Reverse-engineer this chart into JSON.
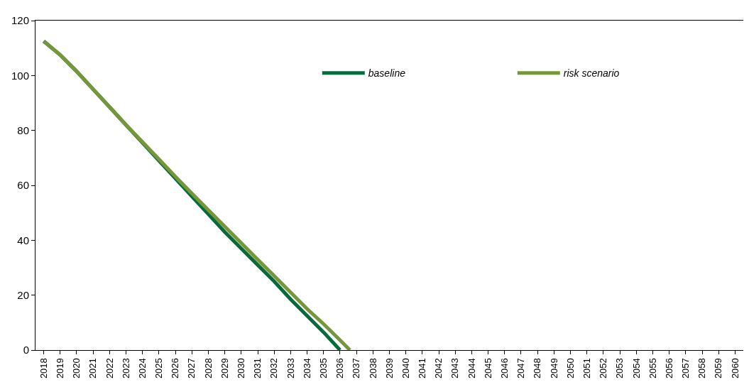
{
  "chart_data": {
    "type": "line",
    "xlim": [
      2017.5,
      2060.5
    ],
    "xticks": [
      2018,
      2019,
      2020,
      2021,
      2022,
      2023,
      2024,
      2025,
      2026,
      2027,
      2028,
      2029,
      2030,
      2031,
      2032,
      2033,
      2034,
      2035,
      2036,
      2037,
      2038,
      2039,
      2040,
      2041,
      2042,
      2043,
      2044,
      2045,
      2046,
      2047,
      2048,
      2049,
      2050,
      2051,
      2052,
      2053,
      2054,
      2055,
      2056,
      2057,
      2058,
      2059,
      2060
    ],
    "ylim": [
      0,
      120
    ],
    "yticks": [
      0,
      20,
      40,
      60,
      80,
      100,
      120
    ],
    "legend": "top",
    "marker": "none",
    "line_style": "solid",
    "series": [
      {
        "name": "baseline",
        "color": "#066b3b",
        "x": [
          2018,
          2019,
          2020,
          2021,
          2022,
          2023,
          2024,
          2025,
          2026,
          2027,
          2028,
          2029,
          2030,
          2031,
          2032,
          2033,
          2034,
          2035,
          2036
        ],
        "values": [
          112.5,
          107.5,
          101.5,
          95,
          88.5,
          82,
          75.5,
          69,
          62.5,
          56,
          49.5,
          43,
          37,
          31,
          25,
          18.5,
          12.5,
          6.5,
          0
        ]
      },
      {
        "name": "risk scenario",
        "color": "#76963a",
        "x": [
          2018,
          2019,
          2020,
          2021,
          2022,
          2023,
          2024,
          2025,
          2026,
          2027,
          2028,
          2029,
          2030,
          2031,
          2032,
          2033,
          2034,
          2035,
          2036,
          2036.6
        ],
        "values": [
          112.5,
          107.5,
          101.5,
          95,
          88.5,
          82,
          75.8,
          69.5,
          63.2,
          57,
          51,
          45,
          39,
          33,
          27,
          21,
          15,
          9.5,
          3.6,
          0
        ]
      }
    ]
  }
}
